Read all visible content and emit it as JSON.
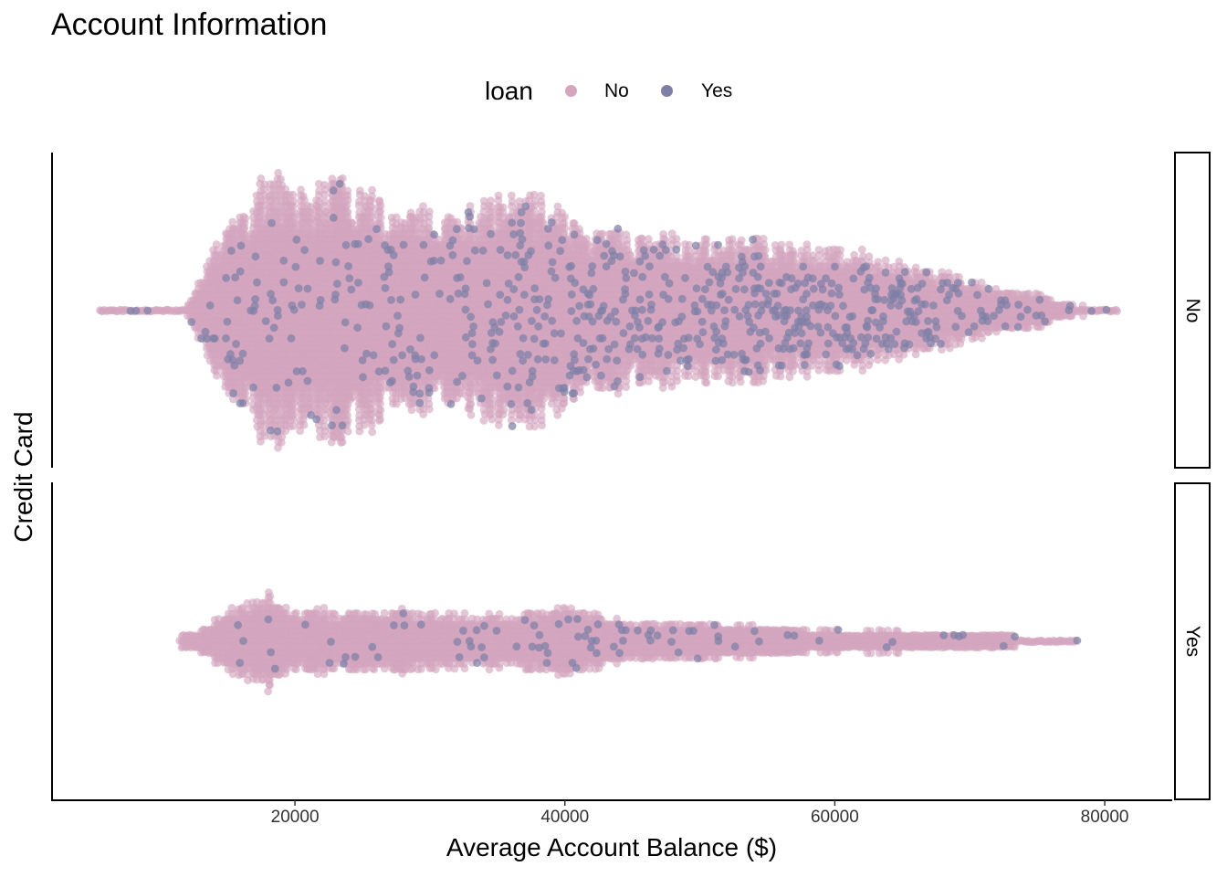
{
  "title": "Account Information",
  "legend": {
    "title": "loan",
    "items": [
      {
        "label": "No",
        "color": "#d4a5bf"
      },
      {
        "label": "Yes",
        "color": "#7e7fa6"
      }
    ]
  },
  "chart_data": {
    "type": "scatter",
    "subtype": "beeswarm",
    "title": "Account Information",
    "xlabel": "Average Account Balance ($)",
    "ylabel": "Credit Card",
    "xlim": [
      2000,
      85000
    ],
    "x_ticks": [
      20000,
      40000,
      60000,
      80000
    ],
    "x_tick_labels": [
      "20000",
      "40000",
      "60000",
      "80000"
    ],
    "facet_by": "Credit Card",
    "facets": [
      "No",
      "Yes"
    ],
    "color_by": "loan",
    "series": [
      {
        "name": "No",
        "color": "#d4a5bf"
      },
      {
        "name": "Yes",
        "color": "#7e7fa6"
      }
    ],
    "panels": [
      {
        "facet": "No",
        "x_range": [
          5500,
          81000
        ],
        "max_half_width": 160,
        "profile": [
          {
            "x": 5500,
            "w": 0
          },
          {
            "x": 12000,
            "w": 2
          },
          {
            "x": 14000,
            "w": 70
          },
          {
            "x": 16000,
            "w": 110
          },
          {
            "x": 18000,
            "w": 160
          },
          {
            "x": 20000,
            "w": 135
          },
          {
            "x": 22000,
            "w": 140
          },
          {
            "x": 24000,
            "w": 155
          },
          {
            "x": 26000,
            "w": 130
          },
          {
            "x": 28000,
            "w": 120
          },
          {
            "x": 32000,
            "w": 112
          },
          {
            "x": 36000,
            "w": 130
          },
          {
            "x": 38000,
            "w": 130
          },
          {
            "x": 42000,
            "w": 90
          },
          {
            "x": 46000,
            "w": 88
          },
          {
            "x": 50000,
            "w": 80
          },
          {
            "x": 54000,
            "w": 80
          },
          {
            "x": 58000,
            "w": 70
          },
          {
            "x": 60000,
            "w": 72
          },
          {
            "x": 64000,
            "w": 55
          },
          {
            "x": 68000,
            "w": 45
          },
          {
            "x": 72000,
            "w": 22
          },
          {
            "x": 75000,
            "w": 18
          },
          {
            "x": 77000,
            "w": 5
          },
          {
            "x": 81000,
            "w": 0
          }
        ],
        "loan_yes_share": [
          {
            "x": 5500,
            "share": 0.15
          },
          {
            "x": 20000,
            "share": 0.06
          },
          {
            "x": 30000,
            "share": 0.12
          },
          {
            "x": 40000,
            "share": 0.17
          },
          {
            "x": 50000,
            "share": 0.25
          },
          {
            "x": 60000,
            "share": 0.3
          },
          {
            "x": 70000,
            "share": 0.22
          },
          {
            "x": 81000,
            "share": 0.15
          }
        ]
      },
      {
        "facet": "Yes",
        "x_range": [
          11500,
          78000
        ],
        "max_half_width": 55,
        "profile": [
          {
            "x": 11500,
            "w": 3
          },
          {
            "x": 13000,
            "w": 12
          },
          {
            "x": 16000,
            "w": 40
          },
          {
            "x": 18000,
            "w": 55
          },
          {
            "x": 20000,
            "w": 30
          },
          {
            "x": 22000,
            "w": 38
          },
          {
            "x": 24000,
            "w": 32
          },
          {
            "x": 26000,
            "w": 30
          },
          {
            "x": 28000,
            "w": 34
          },
          {
            "x": 32000,
            "w": 28
          },
          {
            "x": 36000,
            "w": 28
          },
          {
            "x": 40000,
            "w": 40
          },
          {
            "x": 44000,
            "w": 22
          },
          {
            "x": 48000,
            "w": 20
          },
          {
            "x": 52000,
            "w": 18
          },
          {
            "x": 56000,
            "w": 15
          },
          {
            "x": 60000,
            "w": 10
          },
          {
            "x": 64000,
            "w": 10
          },
          {
            "x": 68000,
            "w": 8
          },
          {
            "x": 72000,
            "w": 5
          },
          {
            "x": 78000,
            "w": 0
          }
        ],
        "loan_yes_share": [
          {
            "x": 11500,
            "share": 0.02
          },
          {
            "x": 30000,
            "share": 0.05
          },
          {
            "x": 45000,
            "share": 0.08
          },
          {
            "x": 60000,
            "share": 0.08
          },
          {
            "x": 78000,
            "share": 0.1
          }
        ]
      }
    ],
    "grid": false,
    "legend_position": "top"
  }
}
